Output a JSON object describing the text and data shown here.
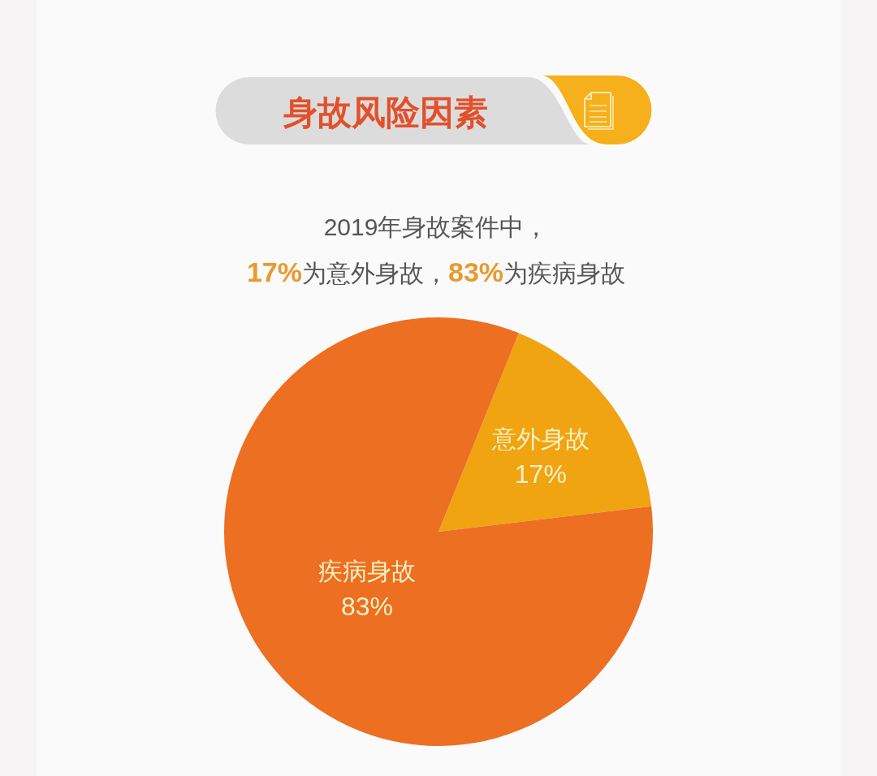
{
  "chart_data": {
    "type": "pie",
    "title": "身故风险因素",
    "subtitle": "2019年身故案件中，\n17%为意外身故，83%为疾病身故",
    "categories": [
      "意外身故",
      "疾病身故"
    ],
    "values": [
      17,
      83
    ],
    "colors": [
      "#f0a412",
      "#ec6f22"
    ],
    "value_labels": [
      "17%",
      "83%"
    ]
  }
}
